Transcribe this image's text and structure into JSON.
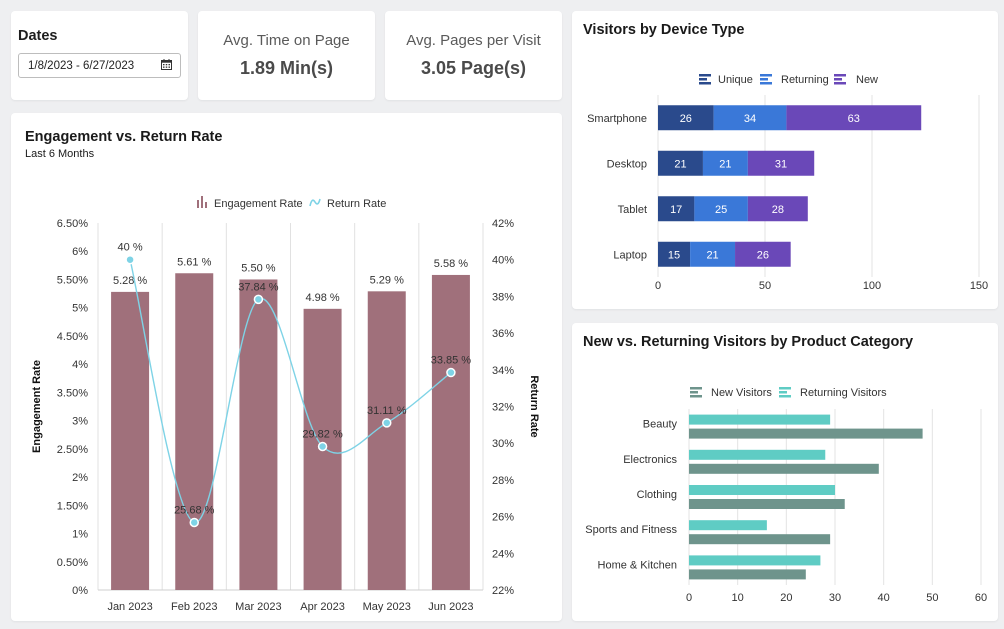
{
  "dates": {
    "label": "Dates",
    "value": "1/8/2023 - 6/27/2023"
  },
  "kpis": [
    {
      "title": "Avg. Time on Page",
      "value": "1.89 Min(s)"
    },
    {
      "title": "Avg. Pages per Visit",
      "value": "3.05 Page(s)"
    }
  ],
  "engagement": {
    "title": "Engagement vs. Return Rate",
    "subtitle": "Last 6 Months"
  },
  "device": {
    "title": "Visitors by Device Type"
  },
  "category": {
    "title": "New vs. Returning Visitors by Product Category"
  },
  "colors": {
    "bar": "#a0707b",
    "line": "#7ed3e6",
    "unique": "#2a4a8c",
    "returning": "#3a78d8",
    "new": "#6a48b8",
    "newVisitors": "#6e948c",
    "returningVisitors": "#5fccc4"
  },
  "chart_data": [
    {
      "type": "bar",
      "title": "Engagement vs. Return Rate",
      "categories": [
        "Jan 2023",
        "Feb 2023",
        "Mar 2023",
        "Apr 2023",
        "May 2023",
        "Jun 2023"
      ],
      "series": [
        {
          "name": "Engagement Rate",
          "type": "bar",
          "axis": "left",
          "values": [
            5.28,
            5.61,
            5.5,
            4.98,
            5.29,
            5.58
          ],
          "labels": [
            "5.28 %",
            "5.61 %",
            "5.50 %",
            "4.98 %",
            "5.29 %",
            "5.58 %"
          ]
        },
        {
          "name": "Return Rate",
          "type": "line",
          "axis": "right",
          "values": [
            40,
            25.68,
            37.84,
            29.82,
            31.11,
            33.85
          ],
          "labels": [
            "40 %",
            "25.68 %",
            "37.84 %",
            "29.82 %",
            "31.11 %",
            "33.85 %"
          ]
        }
      ],
      "ylabel": "Engagement Rate",
      "y2label": "Return Rate",
      "ylim": [
        0,
        6.5
      ],
      "y2lim": [
        22,
        42
      ],
      "yticks": [
        "0%",
        "0.50%",
        "1%",
        "1.50%",
        "2%",
        "2.50%",
        "3%",
        "3.50%",
        "4%",
        "4.50%",
        "5%",
        "5.50%",
        "6%",
        "6.50%"
      ],
      "y2ticks": [
        "22%",
        "24%",
        "26%",
        "28%",
        "30%",
        "32%",
        "34%",
        "36%",
        "38%",
        "40%",
        "42%"
      ],
      "legend": "top-center",
      "grid": true
    },
    {
      "type": "bar",
      "orientation": "horizontal",
      "stacked": true,
      "title": "Visitors by Device Type",
      "categories": [
        "Smartphone",
        "Desktop",
        "Tablet",
        "Laptop"
      ],
      "series": [
        {
          "name": "Unique",
          "values": [
            26,
            21,
            17,
            15
          ]
        },
        {
          "name": "Returning",
          "values": [
            34,
            21,
            25,
            21
          ]
        },
        {
          "name": "New",
          "values": [
            63,
            31,
            28,
            26
          ]
        }
      ],
      "xlim": [
        0,
        150
      ],
      "xticks": [
        "0",
        "50",
        "100",
        "150"
      ],
      "legend": "top-center",
      "grid": true
    },
    {
      "type": "bar",
      "orientation": "horizontal",
      "title": "New vs. Returning Visitors by Product Category",
      "categories": [
        "Beauty",
        "Electronics",
        "Clothing",
        "Sports and Fitness",
        "Home & Kitchen"
      ],
      "series": [
        {
          "name": "New Visitors",
          "values": [
            48,
            39,
            32,
            29,
            24
          ]
        },
        {
          "name": "Returning Visitors",
          "values": [
            29,
            28,
            30,
            16,
            27
          ]
        }
      ],
      "xlim": [
        0,
        60
      ],
      "xticks": [
        "0",
        "10",
        "20",
        "30",
        "40",
        "50",
        "60"
      ],
      "legend": "top-center",
      "grid": true
    }
  ]
}
